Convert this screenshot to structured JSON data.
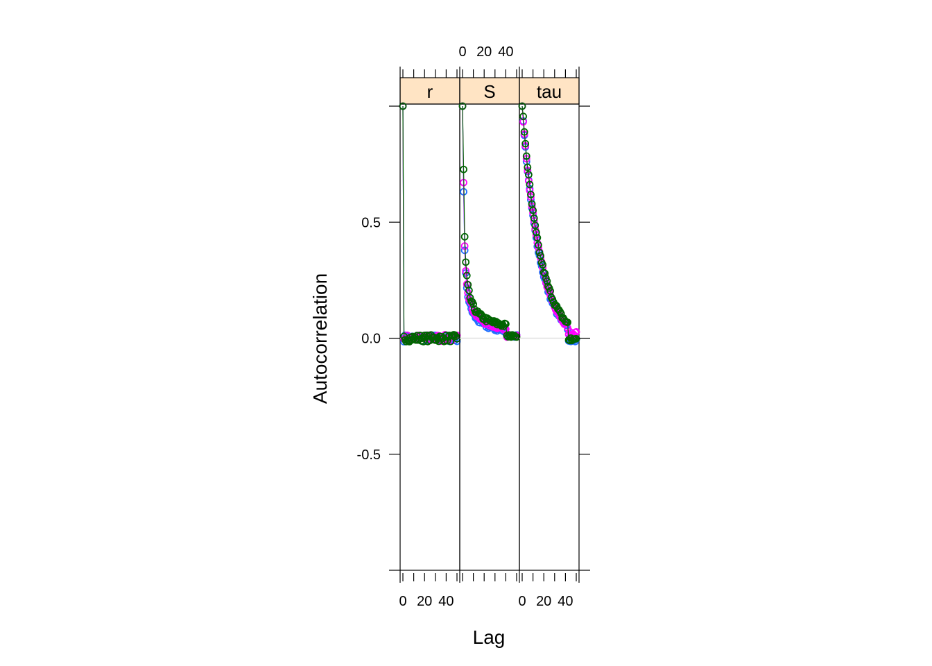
{
  "chart_data": {
    "type": "scatter",
    "xlabel": "Lag",
    "ylabel": "Autocorrelation",
    "xlim": [
      0,
      50
    ],
    "ylim": [
      -1,
      1
    ],
    "x_ticks": [
      "0",
      "20",
      "40"
    ],
    "y_ticks": [
      "-0.5",
      "0.0",
      "0.5"
    ],
    "y_tick_values": [
      -0.5,
      0.0,
      0.5
    ],
    "reference_line": 0,
    "colors": {
      "strip_fill": "#ffe4c4",
      "reference_line": "#e0e0e0",
      "chain1": "#1f6fff",
      "chain2": "#ff00ff",
      "chain3": "#006400"
    },
    "panels": [
      {
        "name": "r",
        "decay": 0.0,
        "lag1": 0.01
      },
      {
        "name": "S",
        "decay": 0.68,
        "lag1": 0.68
      },
      {
        "name": "tau",
        "decay": 0.94,
        "lag1": 0.88
      }
    ],
    "series_example": {
      "x": [
        0,
        1,
        2,
        3,
        5,
        10,
        20,
        30,
        40,
        50
      ],
      "panel_S_approx": [
        1.0,
        0.68,
        0.53,
        0.43,
        0.33,
        0.2,
        0.07,
        0.03,
        0.02,
        0.01
      ],
      "panel_tau_approx": [
        1.0,
        0.88,
        0.78,
        0.7,
        0.57,
        0.4,
        0.18,
        0.06,
        0.0,
        0.0
      ]
    }
  }
}
